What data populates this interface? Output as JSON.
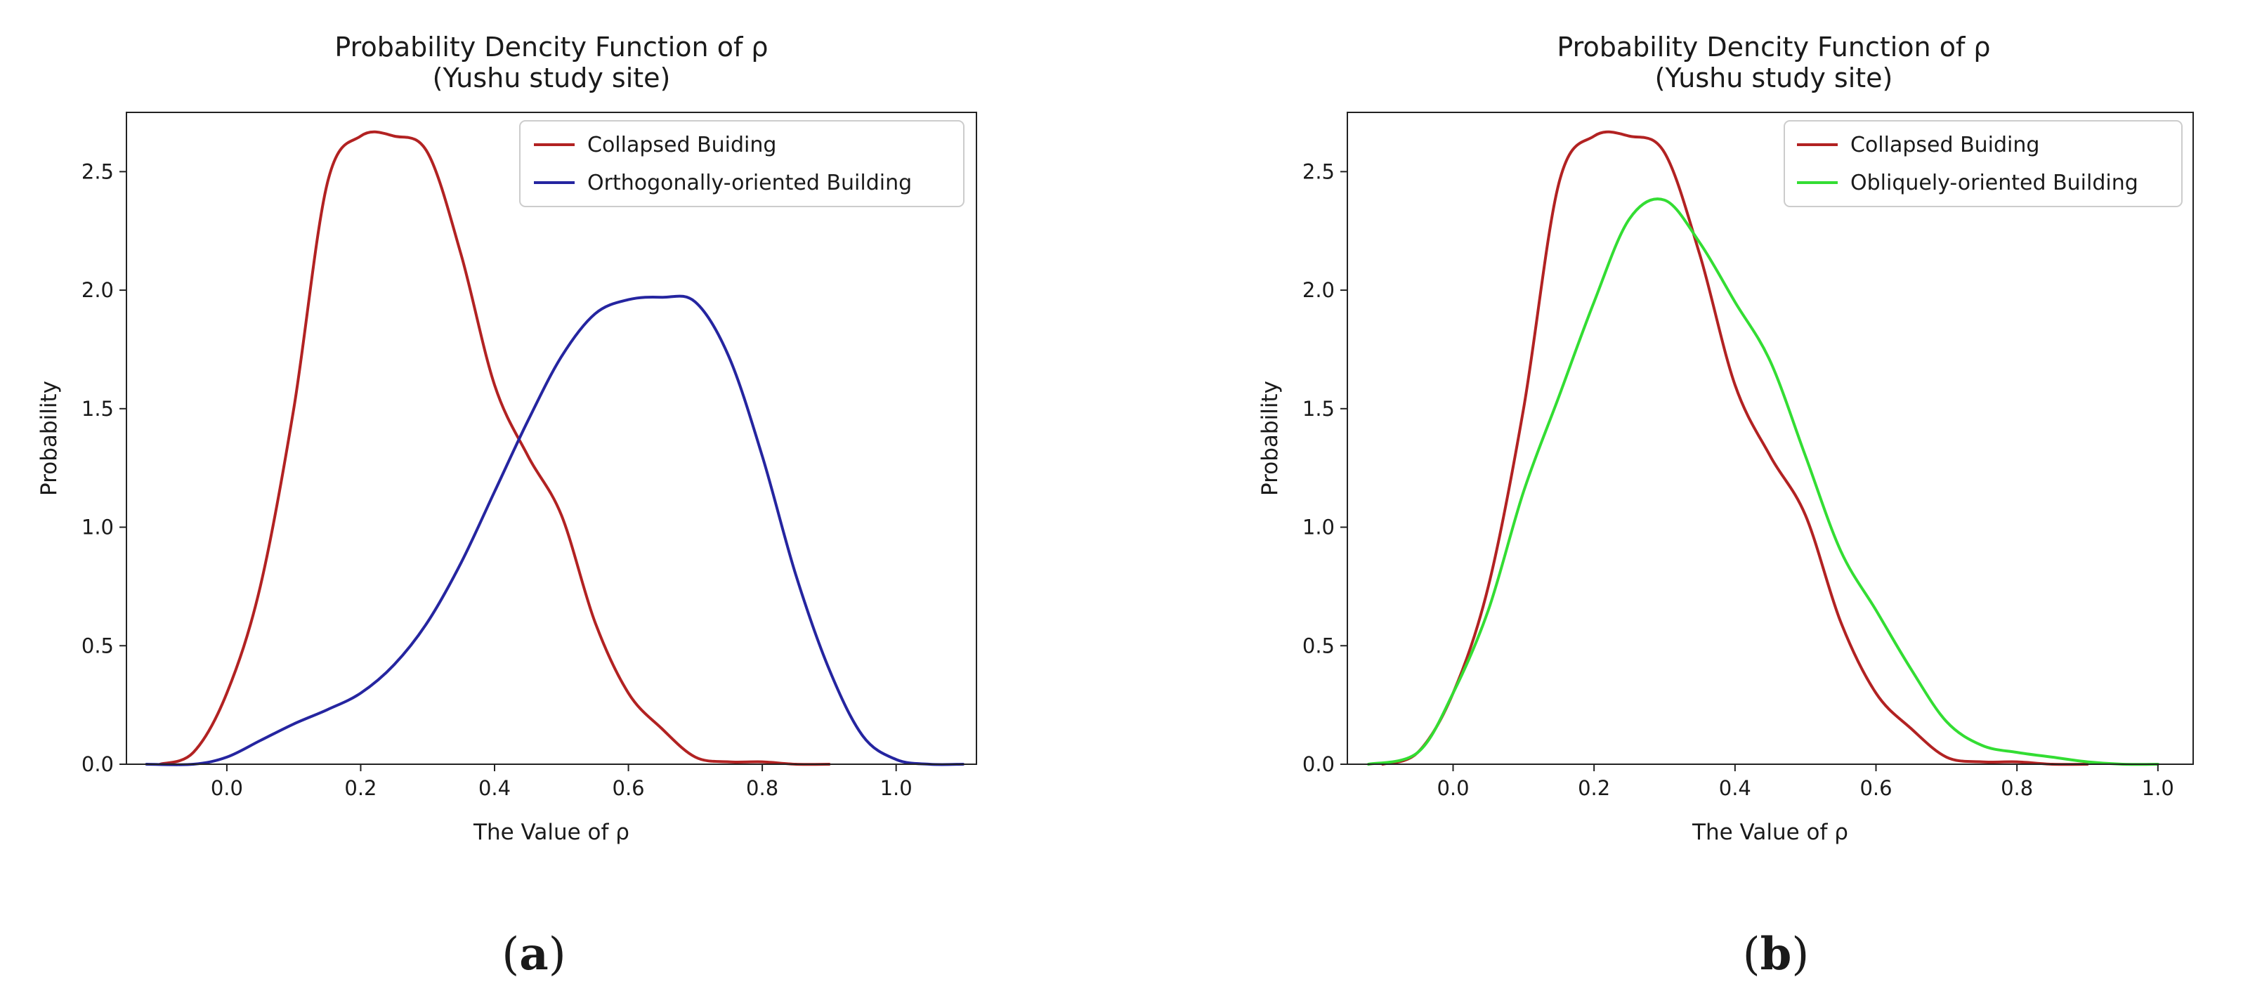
{
  "chart_data": [
    {
      "type": "line",
      "title_line1": "Probability Dencity Function of ρ",
      "title_line2": "(Yushu study site)",
      "xlabel": "The Value of ρ",
      "ylabel": "Probability",
      "xlim": [
        -0.15,
        1.12
      ],
      "ylim": [
        0,
        2.75
      ],
      "xticks": [
        0.0,
        0.2,
        0.4,
        0.6,
        0.8,
        1.0
      ],
      "xtick_labels": [
        "0.0",
        "0.2",
        "0.4",
        "0.6",
        "0.8",
        "1.0"
      ],
      "yticks": [
        0.0,
        0.5,
        1.0,
        1.5,
        2.0,
        2.5
      ],
      "ytick_labels": [
        "0.0",
        "0.5",
        "1.0",
        "1.5",
        "2.0",
        "2.5"
      ],
      "legend_position": "top-right",
      "caption": "a",
      "series": [
        {
          "name": "Collapsed Buiding",
          "color": "#b22222",
          "x": [
            -0.1,
            -0.05,
            0.0,
            0.05,
            0.1,
            0.15,
            0.2,
            0.25,
            0.3,
            0.35,
            0.4,
            0.45,
            0.5,
            0.55,
            0.6,
            0.65,
            0.7,
            0.75,
            0.8,
            0.85,
            0.9
          ],
          "y": [
            0.0,
            0.05,
            0.3,
            0.75,
            1.5,
            2.45,
            2.65,
            2.65,
            2.58,
            2.15,
            1.6,
            1.3,
            1.05,
            0.6,
            0.3,
            0.15,
            0.03,
            0.01,
            0.01,
            0.0,
            0.0
          ]
        },
        {
          "name": "Orthogonally-oriented Building",
          "color": "#2525a0",
          "x": [
            -0.12,
            -0.05,
            0.0,
            0.05,
            0.1,
            0.15,
            0.2,
            0.25,
            0.3,
            0.35,
            0.4,
            0.45,
            0.5,
            0.55,
            0.6,
            0.65,
            0.7,
            0.75,
            0.8,
            0.85,
            0.9,
            0.95,
            1.0,
            1.05,
            1.1
          ],
          "y": [
            0.0,
            0.0,
            0.03,
            0.1,
            0.17,
            0.23,
            0.3,
            0.42,
            0.6,
            0.85,
            1.15,
            1.45,
            1.72,
            1.9,
            1.96,
            1.97,
            1.95,
            1.72,
            1.3,
            0.8,
            0.4,
            0.12,
            0.02,
            0.0,
            0.0
          ]
        }
      ]
    },
    {
      "type": "line",
      "title_line1": "Probability Dencity Function of ρ",
      "title_line2": "(Yushu study site)",
      "xlabel": "The Value of ρ",
      "ylabel": "Probability",
      "xlim": [
        -0.15,
        1.05
      ],
      "ylim": [
        0,
        2.75
      ],
      "xticks": [
        0.0,
        0.2,
        0.4,
        0.6,
        0.8,
        1.0
      ],
      "xtick_labels": [
        "0.0",
        "0.2",
        "0.4",
        "0.6",
        "0.8",
        "1.0"
      ],
      "yticks": [
        0.0,
        0.5,
        1.0,
        1.5,
        2.0,
        2.5
      ],
      "ytick_labels": [
        "0.0",
        "0.5",
        "1.0",
        "1.5",
        "2.0",
        "2.5"
      ],
      "legend_position": "top-right",
      "caption": "b",
      "series": [
        {
          "name": "Collapsed Buiding",
          "color": "#b22222",
          "x": [
            -0.1,
            -0.05,
            0.0,
            0.05,
            0.1,
            0.15,
            0.2,
            0.25,
            0.3,
            0.35,
            0.4,
            0.45,
            0.5,
            0.55,
            0.6,
            0.65,
            0.7,
            0.75,
            0.8,
            0.85,
            0.9
          ],
          "y": [
            0.0,
            0.05,
            0.3,
            0.75,
            1.5,
            2.45,
            2.65,
            2.65,
            2.58,
            2.15,
            1.6,
            1.3,
            1.05,
            0.6,
            0.3,
            0.15,
            0.03,
            0.01,
            0.01,
            0.0,
            0.0
          ]
        },
        {
          "name": "Obliquely-oriented Building",
          "color": "#33dd33",
          "x": [
            -0.12,
            -0.05,
            0.0,
            0.05,
            0.1,
            0.15,
            0.2,
            0.25,
            0.3,
            0.35,
            0.4,
            0.45,
            0.5,
            0.55,
            0.6,
            0.65,
            0.7,
            0.75,
            0.8,
            0.85,
            0.9,
            0.95,
            1.0
          ],
          "y": [
            0.0,
            0.05,
            0.3,
            0.65,
            1.15,
            1.55,
            1.95,
            2.3,
            2.38,
            2.2,
            1.95,
            1.7,
            1.3,
            0.9,
            0.65,
            0.4,
            0.18,
            0.08,
            0.05,
            0.03,
            0.01,
            0.0,
            0.0
          ]
        }
      ]
    }
  ]
}
